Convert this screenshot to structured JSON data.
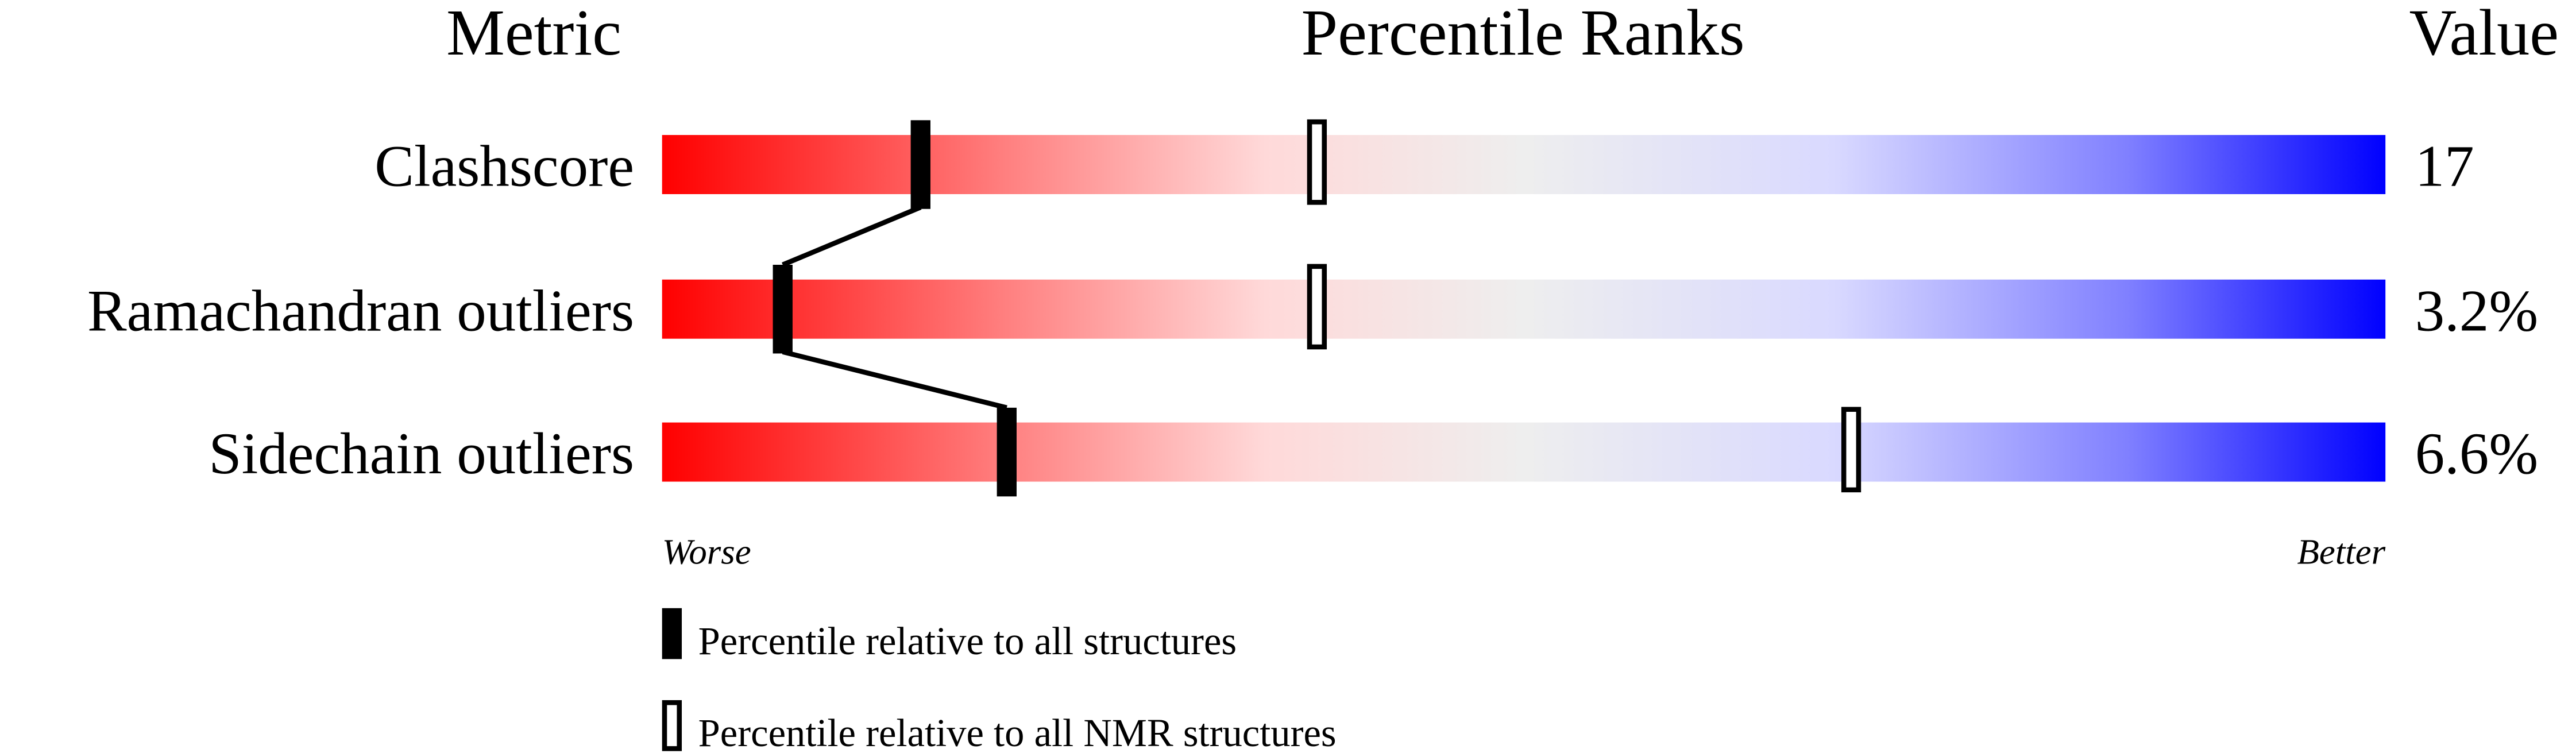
{
  "chart_data": {
    "type": "percentile-bar",
    "headers": {
      "metric": "Metric",
      "ranks": "Percentile Ranks",
      "value": "Value"
    },
    "xlim": [
      0,
      100
    ],
    "axis_labels": {
      "left": "Worse",
      "right": "Better"
    },
    "gradient_colors": [
      "#ff0000",
      "#ff8080",
      "#ffd9d9",
      "#eeeeee",
      "#d9d9ff",
      "#8080ff",
      "#0000ff"
    ],
    "rows": [
      {
        "metric": "Clashscore",
        "value": "17",
        "percentile_all": 15,
        "percentile_nmr": 38
      },
      {
        "metric": "Ramachandran outliers",
        "value": "3.2%",
        "percentile_all": 7,
        "percentile_nmr": 38
      },
      {
        "metric": "Sidechain outliers",
        "value": "6.6%",
        "percentile_all": 20,
        "percentile_nmr": 69
      }
    ],
    "legend": [
      {
        "marker": "filled",
        "label": "Percentile relative to all structures"
      },
      {
        "marker": "hollow",
        "label": "Percentile relative to all NMR structures"
      }
    ]
  }
}
